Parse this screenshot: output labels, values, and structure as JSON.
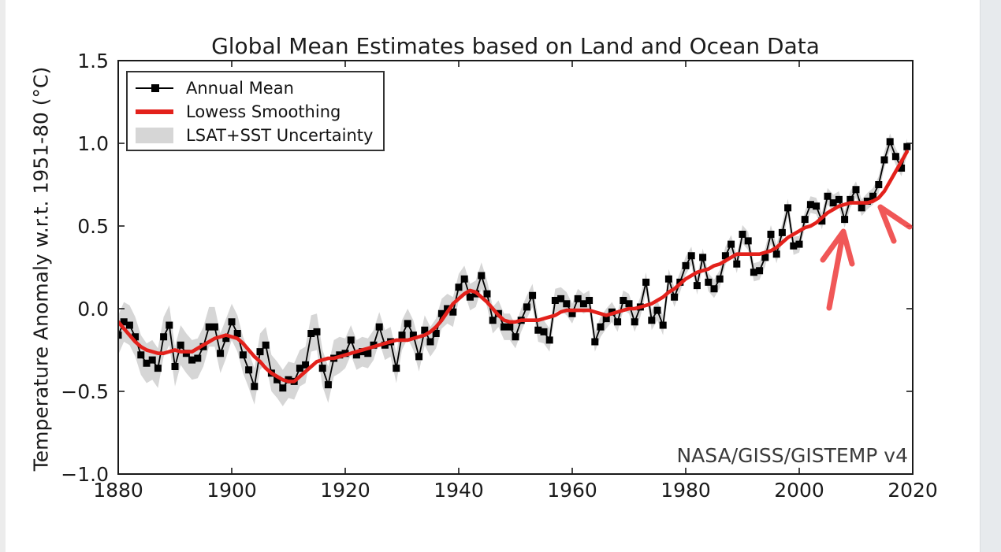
{
  "page": {
    "background": "#ffffff",
    "left_gutter_color": "#ececec",
    "right_gutter_color": "#e7eaed"
  },
  "chart_data": {
    "type": "line",
    "title": "Global Mean Estimates based on Land and Ocean Data",
    "xlabel": "",
    "ylabel": "Temperature Anomaly w.r.t. 1951-80 (°C)",
    "watermark": "NASA/GISS/GISTEMP v4",
    "grid": false,
    "legend_position": "upper-left",
    "xlim": [
      1880,
      2020
    ],
    "ylim": [
      -1.0,
      1.5
    ],
    "xticks": [
      1880,
      1900,
      1920,
      1940,
      1960,
      1980,
      2000,
      2020
    ],
    "xtick_labels": [
      "1880",
      "1900",
      "1920",
      "1940",
      "1960",
      "1980",
      "2000",
      "2020"
    ],
    "yticks": [
      1.5,
      1.0,
      0.5,
      0.0,
      -0.5,
      -1.0
    ],
    "ytick_labels": [
      "1.5",
      "1.0",
      "0.5",
      "0.0",
      "−0.5",
      "−1.0"
    ],
    "x_start_year": 1880,
    "x_end_year": 2019,
    "series": [
      {
        "name": "Annual Mean",
        "type": "line+marker",
        "color": "#000000",
        "values": [
          -0.16,
          -0.08,
          -0.1,
          -0.17,
          -0.28,
          -0.33,
          -0.31,
          -0.36,
          -0.17,
          -0.1,
          -0.35,
          -0.22,
          -0.27,
          -0.31,
          -0.3,
          -0.23,
          -0.11,
          -0.11,
          -0.27,
          -0.18,
          -0.08,
          -0.15,
          -0.28,
          -0.37,
          -0.47,
          -0.26,
          -0.22,
          -0.39,
          -0.43,
          -0.48,
          -0.43,
          -0.44,
          -0.36,
          -0.34,
          -0.15,
          -0.14,
          -0.36,
          -0.46,
          -0.3,
          -0.28,
          -0.27,
          -0.19,
          -0.28,
          -0.26,
          -0.27,
          -0.22,
          -0.11,
          -0.22,
          -0.2,
          -0.36,
          -0.16,
          -0.09,
          -0.16,
          -0.29,
          -0.13,
          -0.2,
          -0.15,
          -0.03,
          0.0,
          -0.02,
          0.13,
          0.18,
          0.07,
          0.09,
          0.2,
          0.09,
          -0.07,
          -0.03,
          -0.11,
          -0.11,
          -0.17,
          -0.07,
          0.01,
          0.08,
          -0.13,
          -0.14,
          -0.19,
          0.05,
          0.06,
          0.03,
          -0.03,
          0.06,
          0.03,
          0.05,
          -0.2,
          -0.11,
          -0.06,
          -0.02,
          -0.08,
          0.05,
          0.03,
          -0.08,
          0.01,
          0.16,
          -0.07,
          -0.01,
          -0.1,
          0.18,
          0.07,
          0.16,
          0.26,
          0.32,
          0.14,
          0.31,
          0.16,
          0.12,
          0.18,
          0.32,
          0.39,
          0.27,
          0.45,
          0.41,
          0.22,
          0.23,
          0.31,
          0.45,
          0.33,
          0.46,
          0.61,
          0.38,
          0.39,
          0.54,
          0.63,
          0.62,
          0.53,
          0.68,
          0.64,
          0.66,
          0.54,
          0.66,
          0.72,
          0.61,
          0.65,
          0.68,
          0.75,
          0.9,
          1.01,
          0.92,
          0.85,
          0.98
        ]
      },
      {
        "name": "Lowess Smoothing",
        "type": "line",
        "color": "#e3211b",
        "values": [
          -0.08,
          -0.12,
          -0.16,
          -0.2,
          -0.23,
          -0.25,
          -0.26,
          -0.27,
          -0.27,
          -0.26,
          -0.25,
          -0.26,
          -0.26,
          -0.26,
          -0.24,
          -0.22,
          -0.2,
          -0.18,
          -0.17,
          -0.16,
          -0.17,
          -0.18,
          -0.21,
          -0.25,
          -0.29,
          -0.32,
          -0.36,
          -0.39,
          -0.41,
          -0.43,
          -0.44,
          -0.44,
          -0.41,
          -0.38,
          -0.35,
          -0.32,
          -0.31,
          -0.3,
          -0.3,
          -0.29,
          -0.28,
          -0.27,
          -0.26,
          -0.25,
          -0.24,
          -0.23,
          -0.22,
          -0.21,
          -0.2,
          -0.19,
          -0.19,
          -0.19,
          -0.18,
          -0.17,
          -0.16,
          -0.14,
          -0.11,
          -0.07,
          -0.02,
          0.03,
          0.06,
          0.09,
          0.11,
          0.1,
          0.07,
          0.04,
          0.0,
          -0.04,
          -0.07,
          -0.08,
          -0.08,
          -0.07,
          -0.07,
          -0.07,
          -0.07,
          -0.06,
          -0.05,
          -0.04,
          -0.02,
          -0.01,
          -0.01,
          -0.01,
          -0.01,
          -0.01,
          -0.02,
          -0.03,
          -0.04,
          -0.03,
          -0.02,
          -0.01,
          0.0,
          0.0,
          0.01,
          0.02,
          0.03,
          0.05,
          0.07,
          0.1,
          0.12,
          0.15,
          0.18,
          0.2,
          0.22,
          0.23,
          0.24,
          0.26,
          0.27,
          0.29,
          0.31,
          0.33,
          0.33,
          0.33,
          0.33,
          0.33,
          0.34,
          0.35,
          0.37,
          0.4,
          0.43,
          0.45,
          0.47,
          0.49,
          0.5,
          0.52,
          0.55,
          0.58,
          0.6,
          0.62,
          0.63,
          0.64,
          0.64,
          0.64,
          0.64,
          0.65,
          0.67,
          0.71,
          0.77,
          0.83,
          0.89,
          0.95
        ]
      },
      {
        "name": "LSAT+SST Uncertainty",
        "type": "band",
        "color": "#d6d6d6",
        "center_series": "Annual Mean",
        "half_width": [
          0.12,
          0.12,
          0.12,
          0.12,
          0.12,
          0.12,
          0.12,
          0.12,
          0.12,
          0.12,
          0.12,
          0.12,
          0.12,
          0.12,
          0.12,
          0.12,
          0.12,
          0.12,
          0.12,
          0.12,
          0.11,
          0.11,
          0.11,
          0.11,
          0.11,
          0.11,
          0.11,
          0.11,
          0.11,
          0.11,
          0.11,
          0.11,
          0.11,
          0.11,
          0.11,
          0.11,
          0.11,
          0.11,
          0.11,
          0.11,
          0.09,
          0.09,
          0.09,
          0.09,
          0.09,
          0.09,
          0.09,
          0.09,
          0.09,
          0.09,
          0.09,
          0.09,
          0.09,
          0.09,
          0.09,
          0.09,
          0.09,
          0.09,
          0.09,
          0.09,
          0.08,
          0.08,
          0.08,
          0.08,
          0.08,
          0.08,
          0.08,
          0.08,
          0.08,
          0.08,
          0.07,
          0.07,
          0.07,
          0.07,
          0.07,
          0.07,
          0.07,
          0.07,
          0.07,
          0.07,
          0.06,
          0.06,
          0.06,
          0.06,
          0.06,
          0.06,
          0.06,
          0.06,
          0.06,
          0.06,
          0.06,
          0.06,
          0.06,
          0.06,
          0.06,
          0.06,
          0.06,
          0.06,
          0.06,
          0.06,
          0.055,
          0.055,
          0.055,
          0.055,
          0.055,
          0.055,
          0.055,
          0.055,
          0.055,
          0.055,
          0.055,
          0.055,
          0.055,
          0.055,
          0.055,
          0.055,
          0.055,
          0.055,
          0.055,
          0.055,
          0.05,
          0.05,
          0.05,
          0.05,
          0.05,
          0.05,
          0.05,
          0.05,
          0.05,
          0.05,
          0.05,
          0.05,
          0.05,
          0.05,
          0.05,
          0.05,
          0.05,
          0.05,
          0.05,
          0.05
        ]
      }
    ],
    "annotations": {
      "arrow_color": "#ef4545",
      "arrows": [
        {
          "name": "hand-drawn-arrow-left",
          "strokes_px": [
            [
              [
                1052,
                391
              ],
              [
                1070,
                294
              ]
            ],
            [
              [
                1070,
                294
              ],
              [
                1044,
                330
              ]
            ],
            [
              [
                1070,
                294
              ],
              [
                1081,
                335
              ]
            ]
          ]
        },
        {
          "name": "hand-drawn-arrow-right",
          "strokes_px": [
            [
              [
                1134,
                306
              ],
              [
                1117,
                263
              ]
            ],
            [
              [
                1154,
                288
              ],
              [
                1117,
                263
              ]
            ]
          ]
        }
      ]
    }
  },
  "legend": {
    "items": [
      {
        "label": "Annual Mean"
      },
      {
        "label": "Lowess Smoothing"
      },
      {
        "label": "LSAT+SST Uncertainty"
      }
    ]
  }
}
